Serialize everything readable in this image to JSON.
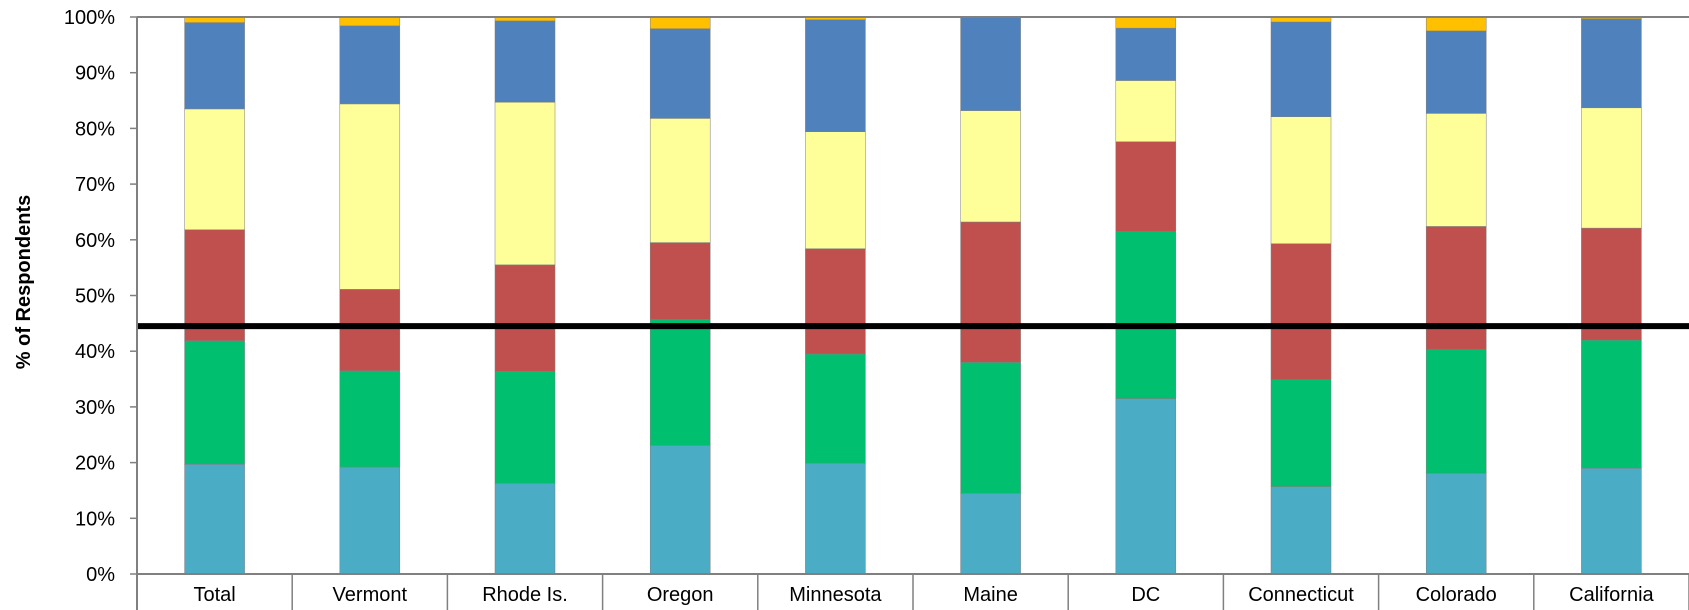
{
  "chart_data": {
    "type": "bar",
    "stacked": true,
    "ylabel": "% of Respondents",
    "xlabel": "",
    "ylim": [
      0,
      100
    ],
    "yticks": [
      "0%",
      "10%",
      "20%",
      "30%",
      "40%",
      "50%",
      "60%",
      "70%",
      "80%",
      "90%",
      "100%"
    ],
    "categories": [
      "Total",
      "Vermont",
      "Rhode Is.",
      "Oregon",
      "Minnesota",
      "Maine",
      "DC",
      "Connecticut",
      "Colorado",
      "California"
    ],
    "series": [
      {
        "color": "#4BACC6",
        "values": [
          19.7,
          19.2,
          16.3,
          23.1,
          19.9,
          14.5,
          31.5,
          15.7,
          18.1,
          19.0
        ]
      },
      {
        "color": "#00BF6F",
        "values": [
          22.2,
          17.3,
          20.1,
          22.6,
          19.6,
          23.5,
          30.0,
          19.2,
          22.2,
          23.0
        ]
      },
      {
        "color": "#C0504D",
        "values": [
          19.9,
          14.6,
          19.1,
          13.8,
          18.9,
          25.2,
          16.1,
          24.4,
          22.1,
          20.1
        ]
      },
      {
        "color": "#FFFF99",
        "values": [
          21.7,
          33.3,
          29.2,
          22.3,
          21.0,
          20.0,
          11.0,
          22.8,
          20.3,
          21.6
        ]
      },
      {
        "color": "#4F81BD",
        "values": [
          15.5,
          14.0,
          14.6,
          16.1,
          20.1,
          16.8,
          9.4,
          17.0,
          14.8,
          16.0
        ]
      },
      {
        "color": "#FFC000",
        "values": [
          1.0,
          1.6,
          0.7,
          2.1,
          0.5,
          0.0,
          2.0,
          0.9,
          2.5,
          0.3
        ]
      }
    ],
    "reference_line": {
      "value": 44.5,
      "color": "#000000"
    },
    "grid": false,
    "legend": "none"
  },
  "colors": {
    "axis": "#808080",
    "bar_outline": "#7F7F7F"
  }
}
